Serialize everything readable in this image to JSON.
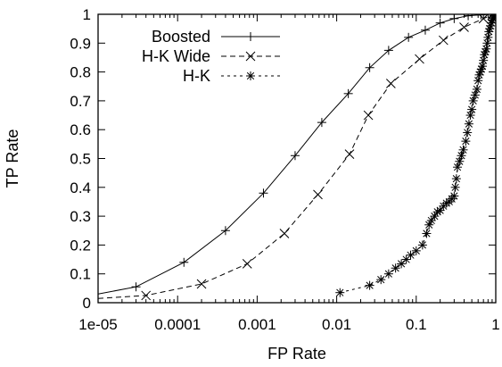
{
  "chart_data": {
    "type": "line",
    "xlabel": "FP Rate",
    "ylabel": "TP Rate",
    "x_scale": "log",
    "xlim": [
      1e-05,
      1
    ],
    "ylim": [
      0,
      1
    ],
    "x_ticks": [
      1e-05,
      0.0001,
      0.001,
      0.01,
      0.1,
      1
    ],
    "x_tick_labels": [
      "1e-05",
      "0.0001",
      "0.001",
      "0.01",
      "0.1",
      "1"
    ],
    "y_ticks": [
      0,
      0.1,
      0.2,
      0.3,
      0.4,
      0.5,
      0.6,
      0.7,
      0.8,
      0.9,
      1
    ],
    "y_tick_labels": [
      "0",
      "0.1",
      "0.2",
      "0.3",
      "0.4",
      "0.5",
      "0.6",
      "0.7",
      "0.8",
      "0.9",
      "1"
    ],
    "grid": false,
    "legend_position": "top-left",
    "series": [
      {
        "name": "Boosted",
        "line_style": "solid",
        "marker": "plus",
        "x": [
          1e-05,
          3e-05,
          0.00012,
          0.0004,
          0.0012,
          0.003,
          0.0065,
          0.014,
          0.026,
          0.045,
          0.08,
          0.13,
          0.2,
          0.3,
          0.45,
          0.65,
          0.9,
          1
        ],
        "y": [
          0.03,
          0.055,
          0.14,
          0.25,
          0.38,
          0.51,
          0.625,
          0.725,
          0.815,
          0.875,
          0.92,
          0.945,
          0.97,
          0.985,
          0.995,
          0.998,
          1,
          1
        ]
      },
      {
        "name": "H-K Wide",
        "line_style": "dashed",
        "marker": "x",
        "x": [
          1e-05,
          4e-05,
          0.0002,
          0.00075,
          0.0022,
          0.0058,
          0.0145,
          0.025,
          0.048,
          0.11,
          0.22,
          0.4,
          0.7,
          0.9,
          1
        ],
        "y": [
          0.015,
          0.025,
          0.065,
          0.135,
          0.24,
          0.375,
          0.515,
          0.65,
          0.76,
          0.845,
          0.91,
          0.955,
          0.985,
          0.998,
          1
        ]
      },
      {
        "name": "H-K",
        "line_style": "dotted",
        "marker": "star",
        "x": [
          0.011,
          0.026,
          0.036,
          0.045,
          0.055,
          0.065,
          0.075,
          0.085,
          0.1,
          0.12,
          0.135,
          0.145,
          0.155,
          0.17,
          0.185,
          0.2,
          0.22,
          0.24,
          0.26,
          0.28,
          0.3,
          0.31,
          0.32,
          0.33,
          0.35,
          0.37,
          0.39,
          0.42,
          0.44,
          0.46,
          0.48,
          0.5,
          0.52,
          0.55,
          0.58,
          0.6,
          0.62,
          0.64,
          0.66,
          0.68,
          0.7,
          0.72,
          0.74,
          0.76,
          0.78,
          0.8,
          0.82,
          0.84,
          0.86,
          0.88,
          0.9,
          0.92,
          0.94,
          0.96,
          0.98,
          1
        ],
        "y": [
          0.035,
          0.06,
          0.08,
          0.1,
          0.12,
          0.135,
          0.15,
          0.165,
          0.18,
          0.2,
          0.24,
          0.27,
          0.285,
          0.3,
          0.315,
          0.32,
          0.335,
          0.345,
          0.35,
          0.36,
          0.37,
          0.4,
          0.43,
          0.47,
          0.49,
          0.51,
          0.53,
          0.56,
          0.59,
          0.62,
          0.65,
          0.67,
          0.7,
          0.72,
          0.74,
          0.77,
          0.79,
          0.8,
          0.81,
          0.82,
          0.84,
          0.86,
          0.87,
          0.88,
          0.9,
          0.92,
          0.94,
          0.95,
          0.96,
          0.97,
          0.98,
          0.985,
          0.99,
          0.995,
          0.998,
          1
        ]
      }
    ]
  }
}
